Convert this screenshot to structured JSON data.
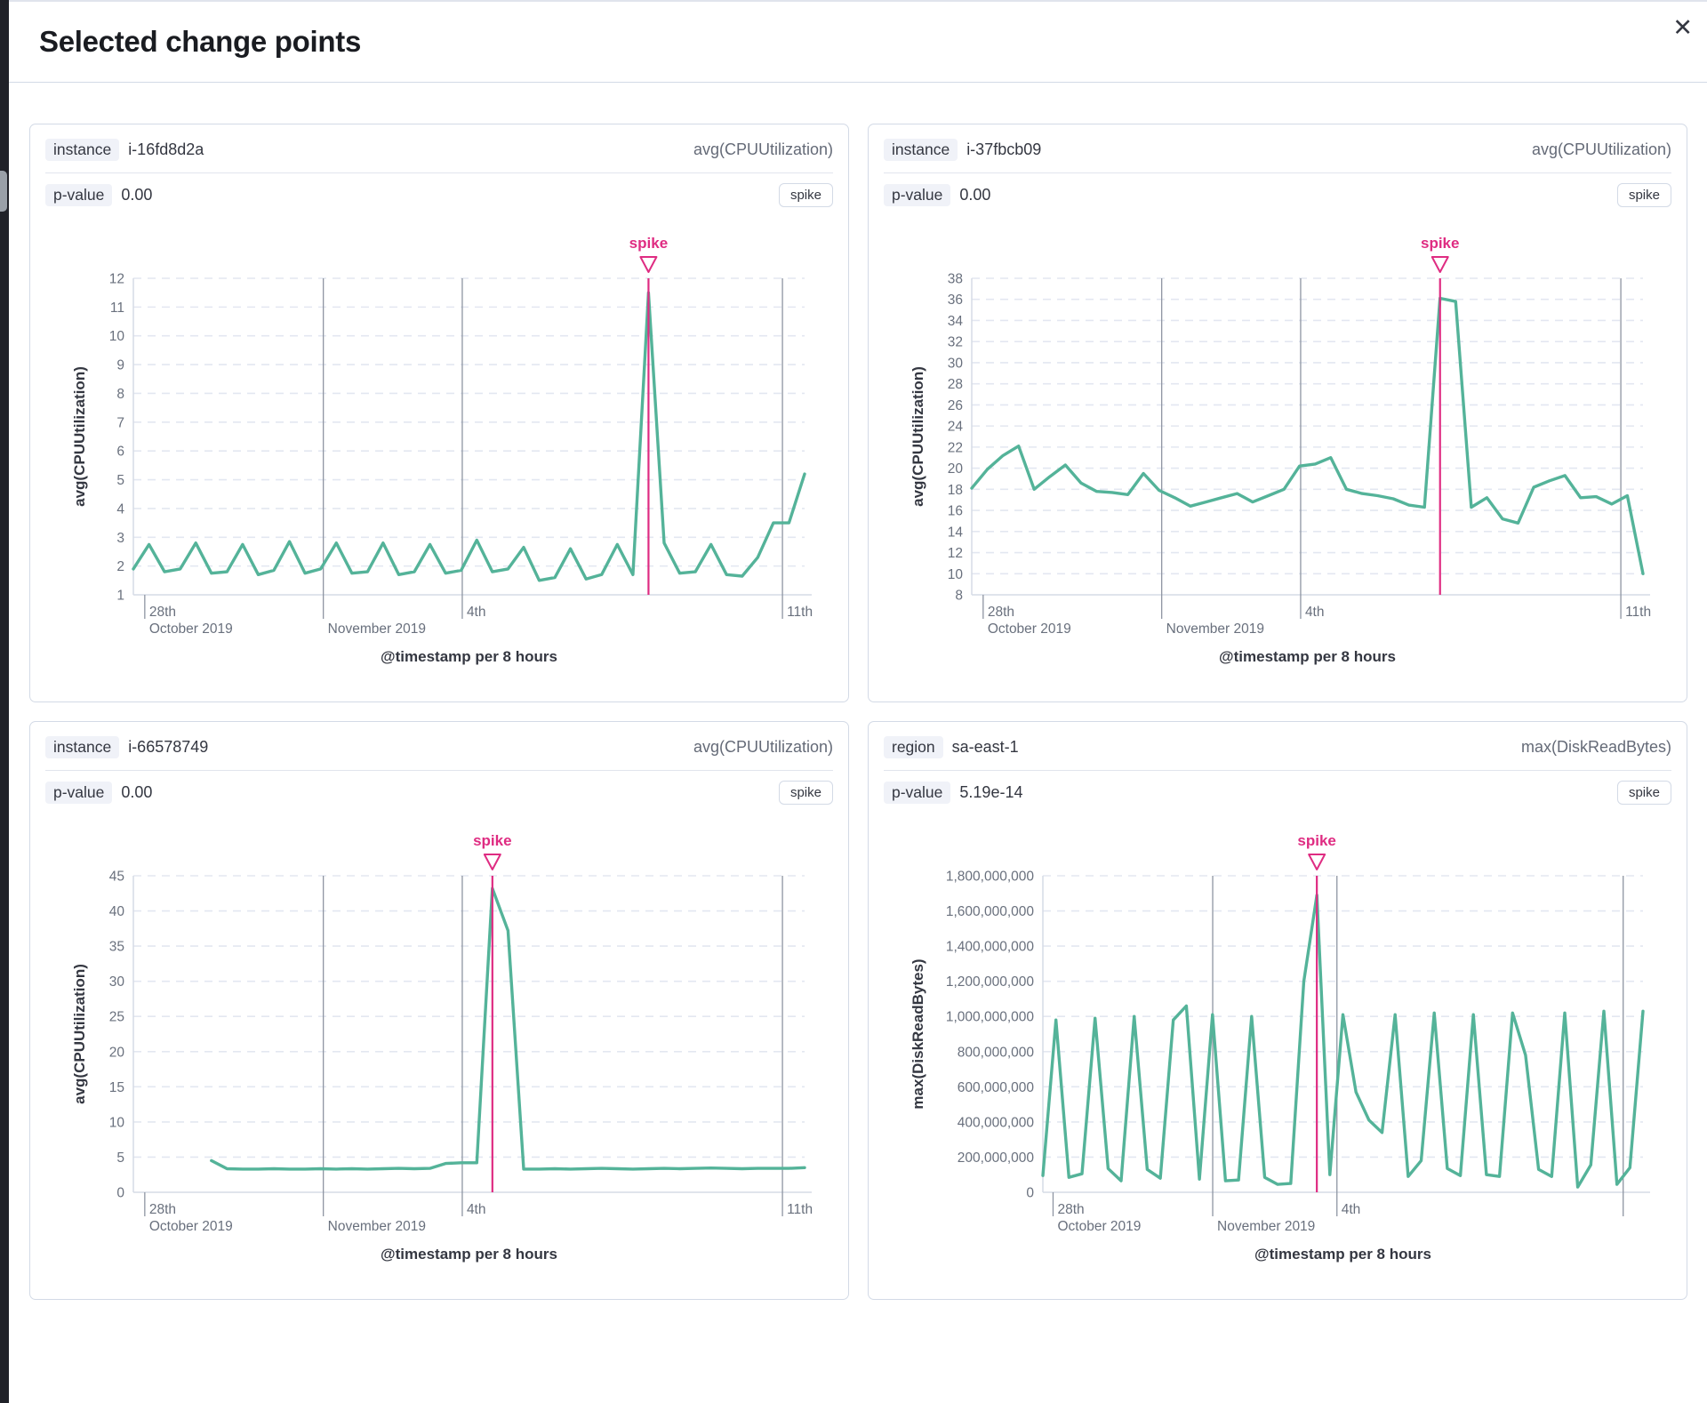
{
  "modal": {
    "title": "Selected change points",
    "close_icon": "✕"
  },
  "theme": {
    "accent": "#df2c82",
    "series": "#54B399",
    "grid": "#E3E7F1",
    "vgrid": "#8E95A2",
    "axis": "#D6DCE6",
    "tick_text": "#69707D"
  },
  "panels": [
    {
      "field_label": "instance",
      "field_value": "i-16fd8d2a",
      "metric": "avg(CPUUtilization)",
      "p_label": "p-value",
      "p_value": "0.00",
      "type_badge": "spike"
    },
    {
      "field_label": "instance",
      "field_value": "i-37fbcb09",
      "metric": "avg(CPUUtilization)",
      "p_label": "p-value",
      "p_value": "0.00",
      "type_badge": "spike"
    },
    {
      "field_label": "instance",
      "field_value": "i-66578749",
      "metric": "avg(CPUUtilization)",
      "p_label": "p-value",
      "p_value": "0.00",
      "type_badge": "spike"
    },
    {
      "field_label": "region",
      "field_value": "sa-east-1",
      "metric": "max(DiskReadBytes)",
      "p_label": "p-value",
      "p_value": "5.19e-14",
      "type_badge": "spike"
    }
  ],
  "chart_data": [
    {
      "type": "line",
      "ylabel": "avg(CPUUtilization)",
      "xlabel": "@timestamp per 8 hours",
      "ylim": [
        1,
        12
      ],
      "yticks": [
        {
          "v": 1,
          "label": "1"
        },
        {
          "v": 2,
          "label": "2"
        },
        {
          "v": 3,
          "label": "3"
        },
        {
          "v": 4,
          "label": "4"
        },
        {
          "v": 5,
          "label": "5"
        },
        {
          "v": 6,
          "label": "6"
        },
        {
          "v": 7,
          "label": "7"
        },
        {
          "v": 8,
          "label": "8"
        },
        {
          "v": 9,
          "label": "9"
        },
        {
          "v": 10,
          "label": "10"
        },
        {
          "v": 11,
          "label": "11"
        },
        {
          "v": 12,
          "label": "12"
        }
      ],
      "xticks": [
        {
          "frac": 0.017,
          "line1": "28th",
          "line2": "October 2019",
          "grid": false
        },
        {
          "frac": 0.283,
          "line1": "",
          "line2": "November 2019",
          "grid": true
        },
        {
          "frac": 0.49,
          "line1": "4th",
          "line2": "",
          "grid": true
        },
        {
          "frac": 0.967,
          "line1": "11th",
          "line2": "",
          "grid": true
        }
      ],
      "values": [
        1.9,
        2.75,
        1.8,
        1.9,
        2.8,
        1.75,
        1.8,
        2.75,
        1.7,
        1.85,
        2.85,
        1.75,
        1.9,
        2.8,
        1.75,
        1.8,
        2.8,
        1.7,
        1.8,
        2.75,
        1.75,
        1.85,
        2.9,
        1.8,
        1.9,
        2.65,
        1.5,
        1.6,
        2.6,
        1.55,
        1.7,
        2.75,
        1.7,
        11.5,
        2.8,
        1.75,
        1.8,
        2.75,
        1.7,
        1.65,
        2.3,
        3.5,
        3.5,
        5.2
      ],
      "annotation": {
        "label": "spike",
        "index": 33
      }
    },
    {
      "type": "line",
      "ylabel": "avg(CPUUtilization)",
      "xlabel": "@timestamp per 8 hours",
      "ylim": [
        8,
        38
      ],
      "yticks": [
        {
          "v": 8,
          "label": "8"
        },
        {
          "v": 10,
          "label": "10"
        },
        {
          "v": 12,
          "label": "12"
        },
        {
          "v": 14,
          "label": "14"
        },
        {
          "v": 16,
          "label": "16"
        },
        {
          "v": 18,
          "label": "18"
        },
        {
          "v": 20,
          "label": "20"
        },
        {
          "v": 22,
          "label": "22"
        },
        {
          "v": 24,
          "label": "24"
        },
        {
          "v": 26,
          "label": "26"
        },
        {
          "v": 28,
          "label": "28"
        },
        {
          "v": 30,
          "label": "30"
        },
        {
          "v": 32,
          "label": "32"
        },
        {
          "v": 34,
          "label": "34"
        },
        {
          "v": 36,
          "label": "36"
        },
        {
          "v": 38,
          "label": "38"
        }
      ],
      "xticks": [
        {
          "frac": 0.017,
          "line1": "28th",
          "line2": "October 2019",
          "grid": false
        },
        {
          "frac": 0.283,
          "line1": "",
          "line2": "November 2019",
          "grid": true
        },
        {
          "frac": 0.49,
          "line1": "4th",
          "line2": "",
          "grid": true
        },
        {
          "frac": 0.967,
          "line1": "11th",
          "line2": "",
          "grid": true
        }
      ],
      "values": [
        18.1,
        19.9,
        21.2,
        22.1,
        18.0,
        19.2,
        20.3,
        18.6,
        17.8,
        17.7,
        17.5,
        19.5,
        17.9,
        17.2,
        16.4,
        16.8,
        17.2,
        17.6,
        16.8,
        17.4,
        18.0,
        20.2,
        20.4,
        21.0,
        18.0,
        17.6,
        17.4,
        17.1,
        16.5,
        16.3,
        36.1,
        35.8,
        16.3,
        17.2,
        15.2,
        14.8,
        18.2,
        18.8,
        19.3,
        17.2,
        17.3,
        16.6,
        17.4,
        10.0
      ],
      "annotation": {
        "label": "spike",
        "index": 30
      }
    },
    {
      "type": "line",
      "ylabel": "avg(CPUUtilization)",
      "xlabel": "@timestamp per 8 hours",
      "ylim": [
        0,
        45
      ],
      "yticks": [
        {
          "v": 0,
          "label": "0"
        },
        {
          "v": 5,
          "label": "5"
        },
        {
          "v": 10,
          "label": "10"
        },
        {
          "v": 15,
          "label": "15"
        },
        {
          "v": 20,
          "label": "20"
        },
        {
          "v": 25,
          "label": "25"
        },
        {
          "v": 30,
          "label": "30"
        },
        {
          "v": 35,
          "label": "35"
        },
        {
          "v": 40,
          "label": "40"
        },
        {
          "v": 45,
          "label": "45"
        }
      ],
      "xticks": [
        {
          "frac": 0.017,
          "line1": "28th",
          "line2": "October 2019",
          "grid": false
        },
        {
          "frac": 0.283,
          "line1": "",
          "line2": "November 2019",
          "grid": true
        },
        {
          "frac": 0.49,
          "line1": "4th",
          "line2": "",
          "grid": true
        },
        {
          "frac": 0.967,
          "line1": "11th",
          "line2": "",
          "grid": true
        }
      ],
      "values": [
        null,
        null,
        null,
        null,
        null,
        4.5,
        3.35,
        3.3,
        3.3,
        3.35,
        3.3,
        3.3,
        3.35,
        3.3,
        3.35,
        3.3,
        3.35,
        3.4,
        3.35,
        3.4,
        4.1,
        4.2,
        4.2,
        43.2,
        37.2,
        3.3,
        3.3,
        3.35,
        3.3,
        3.35,
        3.4,
        3.35,
        3.3,
        3.35,
        3.4,
        3.35,
        3.4,
        3.45,
        3.4,
        3.35,
        3.4,
        3.4,
        3.4,
        3.5
      ],
      "annotation": {
        "label": "spike",
        "index": 23
      }
    },
    {
      "type": "line",
      "ylabel": "max(DiskReadBytes)",
      "xlabel": "@timestamp per 8 hours",
      "ylim": [
        0,
        1800000000
      ],
      "yticks": [
        {
          "v": 0,
          "label": "0"
        },
        {
          "v": 200000000,
          "label": "200,000,000"
        },
        {
          "v": 400000000,
          "label": "400,000,000"
        },
        {
          "v": 600000000,
          "label": "600,000,000"
        },
        {
          "v": 800000000,
          "label": "800,000,000"
        },
        {
          "v": 1000000000,
          "label": "1,000,000,000"
        },
        {
          "v": 1200000000,
          "label": "1,200,000,000"
        },
        {
          "v": 1400000000,
          "label": "1,400,000,000"
        },
        {
          "v": 1600000000,
          "label": "1,600,000,000"
        },
        {
          "v": 1800000000,
          "label": "1,800,000,000"
        }
      ],
      "xticks": [
        {
          "frac": 0.017,
          "line1": "28th",
          "line2": "October 2019",
          "grid": false
        },
        {
          "frac": 0.283,
          "line1": "",
          "line2": "November 2019",
          "grid": true
        },
        {
          "frac": 0.49,
          "line1": "4th",
          "line2": "",
          "grid": true
        },
        {
          "frac": 0.967,
          "line1": "",
          "line2": "",
          "grid": true
        }
      ],
      "values": [
        95000000,
        980000000,
        85000000,
        105000000,
        990000000,
        135000000,
        65000000,
        1000000000,
        130000000,
        80000000,
        980000000,
        1060000000,
        75000000,
        1010000000,
        65000000,
        70000000,
        1000000000,
        85000000,
        45000000,
        50000000,
        1200000000,
        1690000000,
        100000000,
        1010000000,
        570000000,
        410000000,
        340000000,
        1010000000,
        90000000,
        180000000,
        1020000000,
        135000000,
        95000000,
        1010000000,
        100000000,
        90000000,
        1020000000,
        780000000,
        130000000,
        90000000,
        1020000000,
        30000000,
        155000000,
        1030000000,
        45000000,
        140000000,
        1030000000
      ],
      "annotation": {
        "label": "spike",
        "index": 21
      }
    }
  ]
}
